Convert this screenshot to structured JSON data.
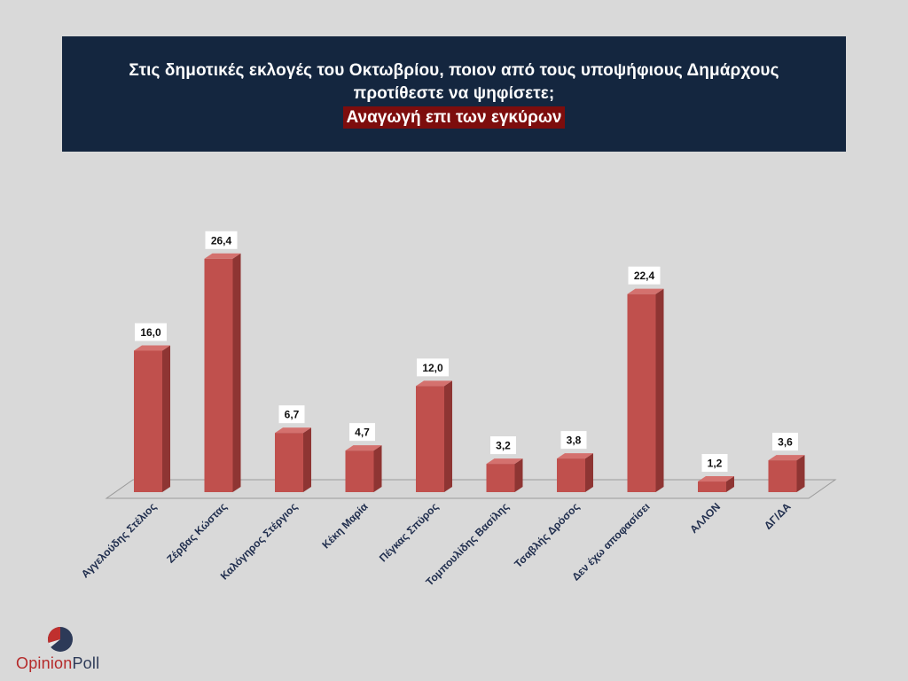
{
  "header": {
    "title_line1": "Στις δημοτικές εκλογές του Οκτωβρίου, ποιον από τους υποψήφιους Δημάρχους",
    "title_line2": "προτίθεστε να ψηφίσετε;",
    "subtitle": "Αναγωγή επι των εγκύρων"
  },
  "logo": {
    "word1": "Opinion",
    "word2": "Poll",
    "mark_icon": "opinionpoll-logo-icon"
  },
  "colors": {
    "bar_front": "#c0504d",
    "bar_side": "#8e3533",
    "bar_top": "#d4716e",
    "header_bg": "#14263f",
    "subtitle_bg": "#7d0d0d",
    "logo_red": "#b52a2a",
    "logo_navy": "#2d3a58"
  },
  "chart_data": {
    "type": "bar",
    "categories": [
      "Αγγελούδης Στέλιος",
      "Ζέρβας Κώστας",
      "Καλόγηρος Στέργιος",
      "Κέκη Μαρία",
      "Πέγκας Σπύρος",
      "Τομπουλίδης Βασίλης",
      "Τσαβλής Δρόσος",
      "Δεν έχω αποφασίσει",
      "ΑΛΛΟΝ",
      "ΔΓ/ΔΑ"
    ],
    "values": [
      16.0,
      26.4,
      6.7,
      4.7,
      12.0,
      3.2,
      3.8,
      22.4,
      1.2,
      3.6
    ],
    "data_labels": [
      "16,0",
      "26,4",
      "6,7",
      "4,7",
      "12,0",
      "3,2",
      "3,8",
      "22,4",
      "1,2",
      "3,6"
    ],
    "title": "",
    "xlabel": "",
    "ylabel": "",
    "ylim": [
      0,
      30
    ],
    "grid": false,
    "legend": "none",
    "style": "3d-column"
  }
}
